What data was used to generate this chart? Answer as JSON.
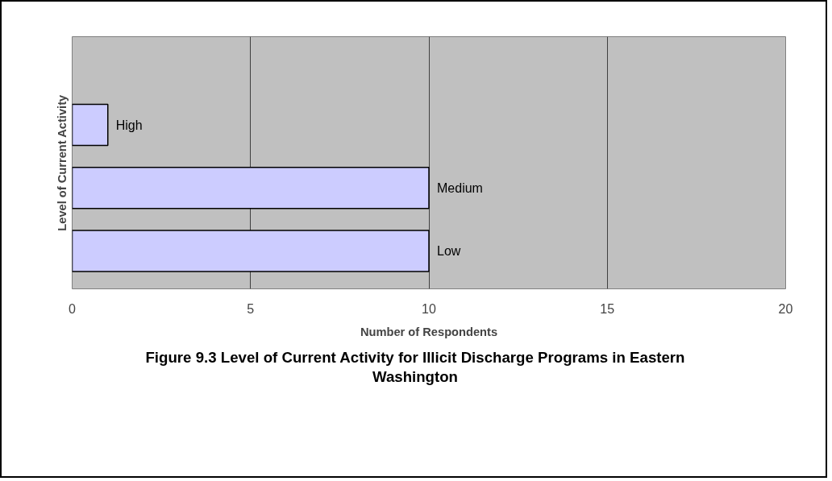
{
  "chart_data": {
    "type": "bar",
    "orientation": "horizontal",
    "title": "Figure 9.3  Level of Current Activity for Illicit Discharge Programs in Eastern Washington",
    "xlabel": "Number of Respondents",
    "ylabel": "Level of Current Activity",
    "categories": [
      "High",
      "Medium",
      "Low"
    ],
    "values": [
      1,
      10,
      10
    ],
    "color": "#ccccff",
    "xlim": [
      0,
      20
    ],
    "xticks": [
      0,
      5,
      10,
      15,
      20
    ],
    "grid": "x",
    "tick_labels": "x"
  }
}
